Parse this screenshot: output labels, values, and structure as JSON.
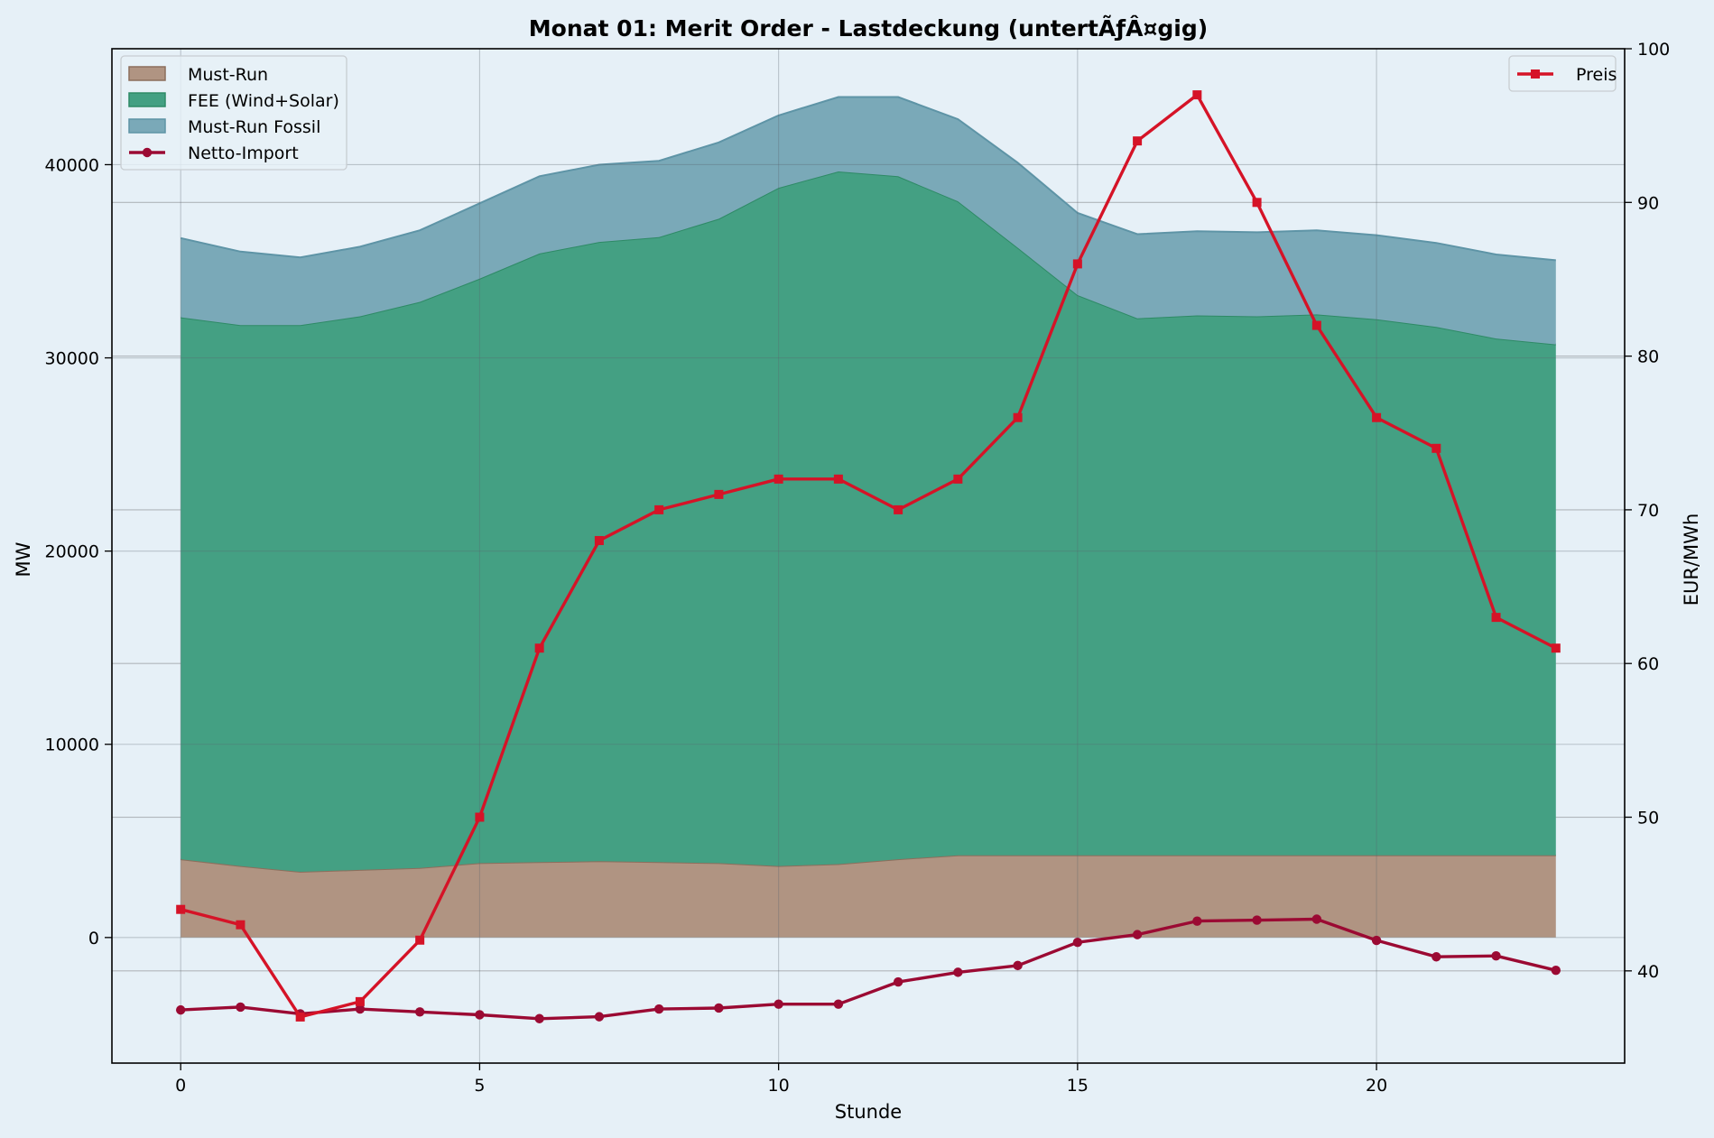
{
  "chart_data": {
    "type": "area",
    "title": "Monat 01: Merit Order - Lastdeckung (untertÃƒÂ¤gig)",
    "xlabel": "Stunde",
    "ylabel_left": "MW",
    "ylabel_right": "EUR/MWh",
    "x": [
      0,
      1,
      2,
      3,
      4,
      5,
      6,
      7,
      8,
      9,
      10,
      11,
      12,
      13,
      14,
      15,
      16,
      17,
      18,
      19,
      20,
      21,
      22,
      23
    ],
    "xlim": [
      -1.15,
      24.15
    ],
    "xticks": [
      0,
      5,
      10,
      15,
      20
    ],
    "ylim_left": [
      -6500,
      46000
    ],
    "yticks_left": [
      0,
      10000,
      20000,
      30000,
      40000
    ],
    "ylim_right": [
      34,
      100
    ],
    "yticks_right": [
      40,
      50,
      60,
      70,
      80,
      90,
      100
    ],
    "grid": true,
    "stacked_series": [
      {
        "name": "Must-Run",
        "color": "#b09482",
        "edge": "#8c6e5c",
        "values": [
          4050,
          3700,
          3400,
          3500,
          3600,
          3850,
          3900,
          3950,
          3900,
          3850,
          3700,
          3800,
          4050,
          4250,
          4250,
          4250,
          4250,
          4250,
          4250,
          4250,
          4250,
          4250,
          4250,
          4250
        ]
      },
      {
        "name": "FEE (Wind+Solar)",
        "color": "#44a083",
        "edge": "#2e8a66",
        "values": [
          28050,
          28000,
          28300,
          28650,
          29300,
          30250,
          31500,
          32050,
          32350,
          33350,
          35100,
          35850,
          35350,
          33850,
          31450,
          29000,
          27800,
          27950,
          27900,
          28000,
          27750,
          27350,
          26750,
          26450
        ]
      },
      {
        "name": "Must-Run Fossil",
        "color": "#7aa9b8",
        "edge": "#5e94a6",
        "values": [
          4100,
          3800,
          3500,
          3600,
          3700,
          3900,
          4000,
          4000,
          3950,
          3950,
          3750,
          3850,
          4100,
          4250,
          4400,
          4250,
          4350,
          4350,
          4350,
          4350,
          4350,
          4350,
          4350,
          4350
        ]
      }
    ],
    "line_series": [
      {
        "name": "Netto-Import",
        "axis": "left",
        "color": "#9b0a33",
        "marker": "circle",
        "values": [
          -3750,
          -3600,
          -3950,
          -3700,
          -3850,
          -4000,
          -4200,
          -4100,
          -3700,
          -3650,
          -3450,
          -3450,
          -2300,
          -1800,
          -1450,
          -250,
          150,
          850,
          900,
          950,
          -150,
          -1000,
          -950,
          -1700
        ]
      },
      {
        "name": "Preis",
        "axis": "right",
        "color": "#d51327",
        "marker": "square",
        "values": [
          44,
          43,
          37,
          38,
          42,
          50,
          61,
          68,
          70,
          71,
          72,
          72,
          70,
          72,
          76,
          86,
          94,
          97,
          90,
          82,
          76,
          74,
          63,
          61
        ]
      }
    ],
    "legend_left": {
      "placement": "upper-left",
      "entries": [
        "Must-Run",
        "FEE (Wind+Solar)",
        "Must-Run Fossil",
        "Netto-Import"
      ]
    },
    "legend_right": {
      "placement": "upper-right",
      "entries": [
        "Preis"
      ]
    }
  }
}
